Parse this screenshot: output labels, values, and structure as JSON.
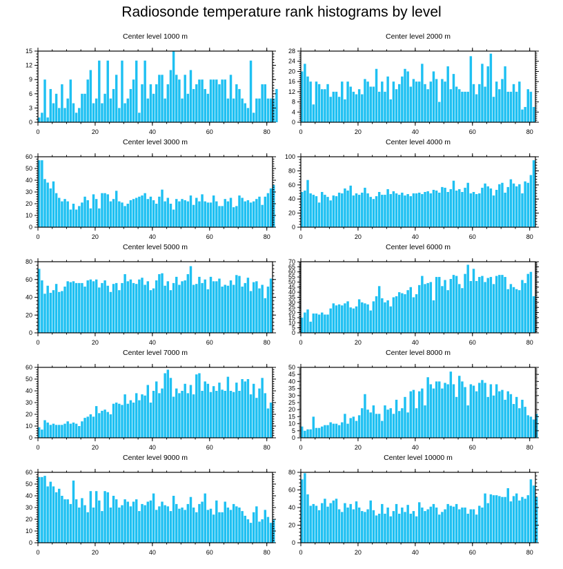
{
  "title": "Radiosonde temperature rank histograms by level",
  "chart_data": [
    {
      "type": "bar",
      "title": "Center level 1000 m",
      "xlim": [
        0,
        82
      ],
      "ylim": [
        0,
        15
      ],
      "yticks": [
        0,
        3,
        6,
        9,
        12,
        15
      ],
      "xticks": [
        0,
        20,
        40,
        60,
        80
      ],
      "values": [
        1,
        2,
        9,
        1,
        7,
        4,
        6,
        3,
        8,
        3,
        5,
        9,
        4,
        2,
        3,
        6,
        6,
        9,
        11,
        4,
        5,
        13,
        4,
        6,
        13,
        5,
        7,
        10,
        3,
        13,
        4,
        5,
        7,
        9,
        13,
        2,
        8,
        13,
        5,
        8,
        6,
        8,
        10,
        10,
        5,
        8,
        11,
        15,
        10,
        9,
        5,
        10,
        6,
        11,
        7,
        8,
        9,
        9,
        7,
        6,
        9,
        9,
        9,
        8,
        9,
        9,
        5,
        10,
        5,
        8,
        7,
        5,
        4,
        3,
        13,
        2,
        5,
        5,
        8,
        8,
        5,
        5,
        5,
        7
      ]
    },
    {
      "type": "bar",
      "title": "Center level 2000 m",
      "xlim": [
        0,
        82
      ],
      "ylim": [
        0,
        28
      ],
      "yticks": [
        0,
        4,
        8,
        12,
        16,
        20,
        24,
        28
      ],
      "xticks": [
        0,
        20,
        40,
        60,
        80
      ],
      "values": [
        20,
        23,
        18,
        16,
        7,
        16,
        15,
        13,
        13,
        15,
        10,
        12,
        12,
        10,
        16,
        9,
        16,
        14,
        12,
        11,
        13,
        11,
        17,
        16,
        14,
        14,
        21,
        12,
        16,
        12,
        18,
        9,
        16,
        13,
        15,
        18,
        21,
        20,
        14,
        17,
        16,
        16,
        23,
        15,
        13,
        16,
        20,
        17,
        8,
        17,
        16,
        22,
        13,
        19,
        14,
        13,
        12,
        12,
        12,
        26,
        15,
        11,
        15,
        23,
        14,
        22,
        27,
        10,
        16,
        13,
        17,
        22,
        12,
        12,
        15,
        12,
        16,
        5,
        6,
        13,
        12,
        6
      ]
    },
    {
      "type": "bar",
      "title": "Center level 3000 m",
      "xlim": [
        0,
        82
      ],
      "ylim": [
        0,
        60
      ],
      "yticks": [
        0,
        10,
        20,
        30,
        40,
        50,
        60
      ],
      "xticks": [
        0,
        20,
        40,
        60,
        80
      ],
      "values": [
        57,
        57,
        41,
        38,
        33,
        39,
        29,
        25,
        22,
        24,
        22,
        15,
        20,
        15,
        18,
        21,
        26,
        23,
        16,
        28,
        24,
        16,
        29,
        29,
        28,
        22,
        24,
        31,
        22,
        21,
        18,
        20,
        23,
        24,
        25,
        26,
        27,
        29,
        24,
        26,
        23,
        20,
        26,
        32,
        22,
        25,
        20,
        15,
        24,
        22,
        24,
        23,
        22,
        27,
        19,
        25,
        22,
        28,
        22,
        21,
        21,
        27,
        22,
        18,
        18,
        24,
        22,
        25,
        17,
        18,
        27,
        25,
        22,
        23,
        21,
        22,
        24,
        26,
        19,
        26,
        29,
        33,
        36
      ]
    },
    {
      "type": "bar",
      "title": "Center level 4000 m",
      "xlim": [
        0,
        82
      ],
      "ylim": [
        0,
        100
      ],
      "yticks": [
        0,
        20,
        40,
        60,
        80,
        100
      ],
      "xticks": [
        0,
        20,
        40,
        60,
        80
      ],
      "values": [
        50,
        52,
        67,
        48,
        46,
        44,
        35,
        50,
        46,
        43,
        38,
        45,
        44,
        49,
        48,
        55,
        52,
        59,
        45,
        48,
        46,
        49,
        56,
        48,
        43,
        40,
        44,
        50,
        46,
        46,
        54,
        47,
        51,
        48,
        46,
        49,
        45,
        47,
        44,
        48,
        48,
        49,
        47,
        50,
        51,
        48,
        53,
        52,
        49,
        57,
        56,
        50,
        54,
        66,
        52,
        54,
        50,
        56,
        63,
        48,
        50,
        47,
        48,
        56,
        62,
        58,
        55,
        45,
        53,
        61,
        63,
        49,
        57,
        68,
        62,
        58,
        61,
        48,
        65,
        63,
        74,
        95
      ]
    },
    {
      "type": "bar",
      "title": "Center level 5000 m",
      "xlim": [
        0,
        82
      ],
      "ylim": [
        0,
        80
      ],
      "yticks": [
        0,
        20,
        40,
        60,
        80
      ],
      "xticks": [
        0,
        20,
        40,
        60,
        80
      ],
      "values": [
        72,
        59,
        44,
        53,
        45,
        48,
        55,
        46,
        47,
        52,
        58,
        57,
        58,
        56,
        56,
        56,
        52,
        59,
        60,
        58,
        60,
        51,
        56,
        59,
        53,
        46,
        55,
        56,
        48,
        56,
        66,
        58,
        60,
        56,
        55,
        60,
        62,
        54,
        58,
        48,
        50,
        59,
        66,
        67,
        53,
        58,
        48,
        56,
        63,
        54,
        58,
        59,
        66,
        75,
        54,
        55,
        63,
        56,
        60,
        49,
        63,
        58,
        58,
        61,
        52,
        54,
        53,
        59,
        54,
        65,
        64,
        52,
        56,
        62,
        47,
        57,
        58,
        50,
        54,
        39,
        52,
        61
      ]
    },
    {
      "type": "bar",
      "title": "Center level 6000 m",
      "xlim": [
        0,
        82
      ],
      "ylim": [
        0,
        70
      ],
      "yticks": [
        0,
        5,
        10,
        15,
        20,
        25,
        30,
        35,
        40,
        45,
        50,
        55,
        60,
        65,
        70
      ],
      "xticks": [
        0,
        20,
        40,
        60,
        80
      ],
      "values": [
        15,
        20,
        23,
        11,
        19,
        19,
        18,
        20,
        18,
        18,
        24,
        29,
        27,
        28,
        27,
        29,
        31,
        25,
        24,
        26,
        33,
        30,
        29,
        28,
        22,
        31,
        36,
        46,
        34,
        30,
        32,
        26,
        35,
        36,
        40,
        39,
        38,
        42,
        45,
        35,
        38,
        47,
        56,
        48,
        49,
        50,
        32,
        55,
        55,
        46,
        52,
        42,
        53,
        57,
        56,
        48,
        44,
        58,
        67,
        51,
        63,
        51,
        55,
        56,
        50,
        54,
        55,
        48,
        56,
        57,
        57,
        55,
        43,
        48,
        45,
        43,
        42,
        52,
        49,
        58,
        60,
        36
      ]
    },
    {
      "type": "bar",
      "title": "Center level 7000 m",
      "xlim": [
        0,
        82
      ],
      "ylim": [
        0,
        60
      ],
      "yticks": [
        0,
        10,
        20,
        30,
        40,
        50,
        60
      ],
      "xticks": [
        0,
        20,
        40,
        60,
        80
      ],
      "values": [
        9,
        7,
        15,
        13,
        11,
        12,
        11,
        11,
        11,
        12,
        14,
        12,
        13,
        12,
        10,
        14,
        17,
        18,
        20,
        18,
        27,
        21,
        23,
        24,
        22,
        20,
        29,
        30,
        29,
        28,
        37,
        29,
        32,
        30,
        38,
        32,
        37,
        36,
        45,
        30,
        40,
        48,
        38,
        42,
        55,
        58,
        51,
        35,
        42,
        38,
        40,
        46,
        38,
        45,
        37,
        54,
        55,
        40,
        48,
        46,
        39,
        44,
        40,
        47,
        41,
        40,
        52,
        40,
        39,
        47,
        40,
        50,
        48,
        50,
        37,
        46,
        34,
        42,
        51,
        38,
        25,
        30
      ]
    },
    {
      "type": "bar",
      "title": "Center level 8000 m",
      "xlim": [
        0,
        82
      ],
      "ylim": [
        0,
        50
      ],
      "yticks": [
        0,
        5,
        10,
        15,
        20,
        25,
        30,
        35,
        40,
        45,
        50
      ],
      "xticks": [
        0,
        20,
        40,
        60,
        80
      ],
      "values": [
        8,
        5,
        6,
        6,
        15,
        7,
        7,
        8,
        9,
        9,
        11,
        10,
        10,
        9,
        11,
        17,
        10,
        14,
        15,
        12,
        16,
        21,
        31,
        20,
        18,
        23,
        17,
        17,
        12,
        23,
        20,
        21,
        17,
        27,
        19,
        21,
        29,
        18,
        33,
        34,
        21,
        33,
        35,
        23,
        43,
        38,
        35,
        40,
        40,
        35,
        39,
        38,
        47,
        38,
        29,
        44,
        40,
        36,
        23,
        38,
        37,
        33,
        39,
        41,
        39,
        29,
        38,
        30,
        38,
        33,
        34,
        27,
        33,
        31,
        24,
        29,
        21,
        27,
        22,
        16,
        15,
        13,
        17
      ]
    },
    {
      "type": "bar",
      "title": "Center level 9000 m",
      "xlim": [
        0,
        82
      ],
      "ylim": [
        0,
        60
      ],
      "yticks": [
        0,
        10,
        20,
        30,
        40,
        50,
        60
      ],
      "xticks": [
        0,
        20,
        40,
        60,
        80
      ],
      "values": [
        56,
        56,
        57,
        48,
        52,
        48,
        43,
        46,
        40,
        37,
        37,
        33,
        53,
        37,
        30,
        38,
        32,
        26,
        44,
        30,
        44,
        36,
        27,
        44,
        43,
        30,
        40,
        37,
        30,
        32,
        37,
        35,
        31,
        35,
        37,
        27,
        33,
        32,
        35,
        36,
        42,
        28,
        31,
        35,
        32,
        31,
        27,
        40,
        33,
        29,
        30,
        28,
        33,
        39,
        30,
        26,
        33,
        35,
        42,
        28,
        29,
        24,
        36,
        26,
        26,
        35,
        30,
        28,
        33,
        31,
        30,
        27,
        23,
        20,
        17,
        26,
        31,
        18,
        20,
        28,
        22,
        17,
        20
      ]
    },
    {
      "type": "bar",
      "title": "Center level 10000 m",
      "xlim": [
        0,
        82
      ],
      "ylim": [
        0,
        80
      ],
      "yticks": [
        0,
        20,
        40,
        60,
        80
      ],
      "xticks": [
        0,
        20,
        40,
        60,
        80
      ],
      "values": [
        72,
        79,
        55,
        42,
        44,
        42,
        37,
        45,
        50,
        41,
        45,
        48,
        50,
        38,
        35,
        45,
        40,
        44,
        38,
        47,
        40,
        36,
        35,
        38,
        48,
        37,
        31,
        33,
        44,
        33,
        40,
        30,
        36,
        44,
        33,
        40,
        35,
        43,
        33,
        36,
        30,
        46,
        40,
        36,
        38,
        41,
        44,
        40,
        32,
        35,
        38,
        44,
        42,
        41,
        44,
        38,
        40,
        40,
        33,
        38,
        38,
        32,
        42,
        40,
        56,
        45,
        55,
        54,
        54,
        53,
        52,
        52,
        62,
        47,
        53,
        56,
        48,
        52,
        50,
        54,
        72,
        65,
        52
      ]
    }
  ]
}
